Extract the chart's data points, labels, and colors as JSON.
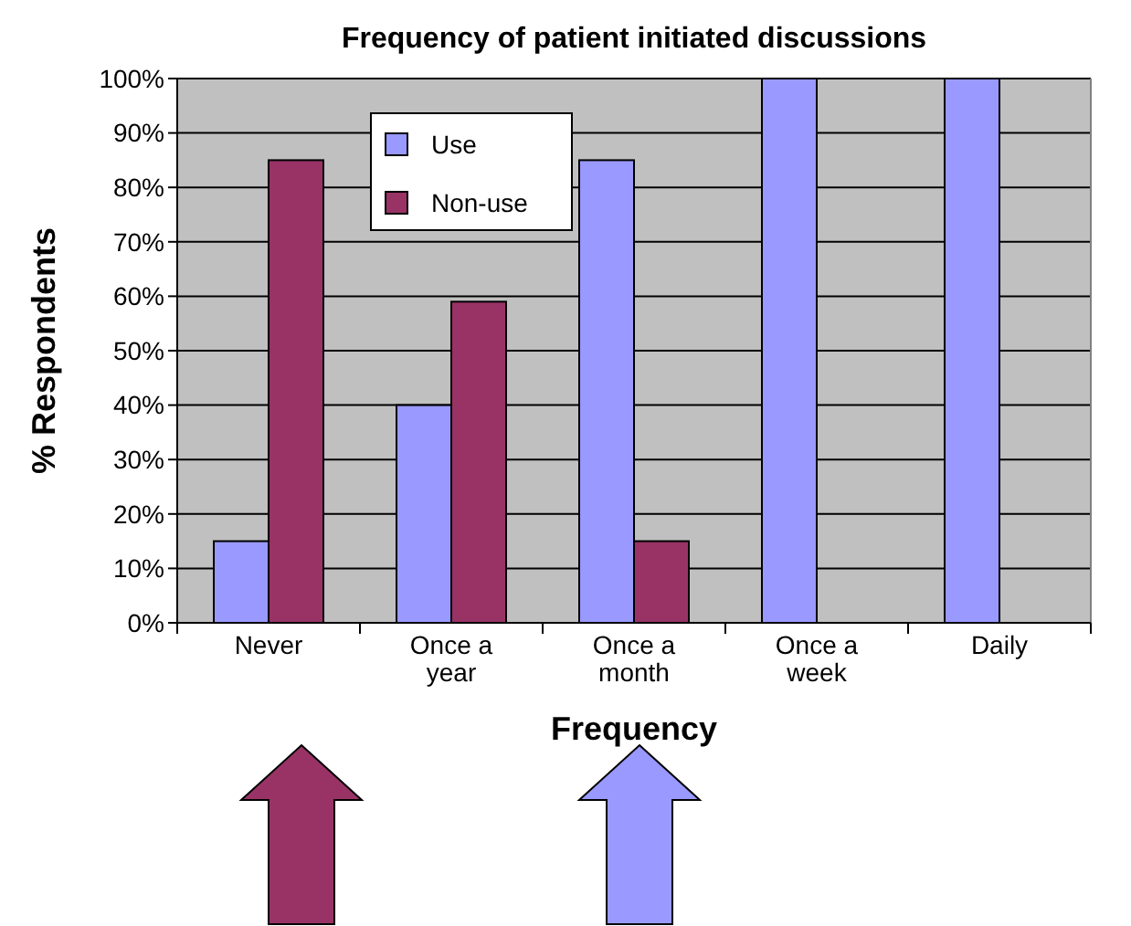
{
  "chart_data": {
    "type": "bar",
    "title": "Frequency of patient initiated discussions",
    "xlabel": "Frequency",
    "ylabel": "% Respondents",
    "categories": [
      "Never",
      "Once a year",
      "Once a month",
      "Once a week",
      "Daily"
    ],
    "series": [
      {
        "name": "Use",
        "color": "#9999ff",
        "values": [
          15,
          40,
          85,
          100,
          100
        ]
      },
      {
        "name": "Non-use",
        "color": "#993366",
        "values": [
          85,
          59,
          15,
          0,
          0
        ]
      }
    ],
    "ylim": [
      0,
      100
    ],
    "yticks": [
      {
        "value": 0,
        "label": "0%"
      },
      {
        "value": 10,
        "label": "10%"
      },
      {
        "value": 20,
        "label": "20%"
      },
      {
        "value": 30,
        "label": "30%"
      },
      {
        "value": 40,
        "label": "40%"
      },
      {
        "value": 50,
        "label": "50%"
      },
      {
        "value": 60,
        "label": "60%"
      },
      {
        "value": 70,
        "label": "70%"
      },
      {
        "value": 80,
        "label": "80%"
      },
      {
        "value": 90,
        "label": "90%"
      },
      {
        "value": 100,
        "label": "100%"
      }
    ],
    "grid": "y",
    "legend": "top left"
  }
}
